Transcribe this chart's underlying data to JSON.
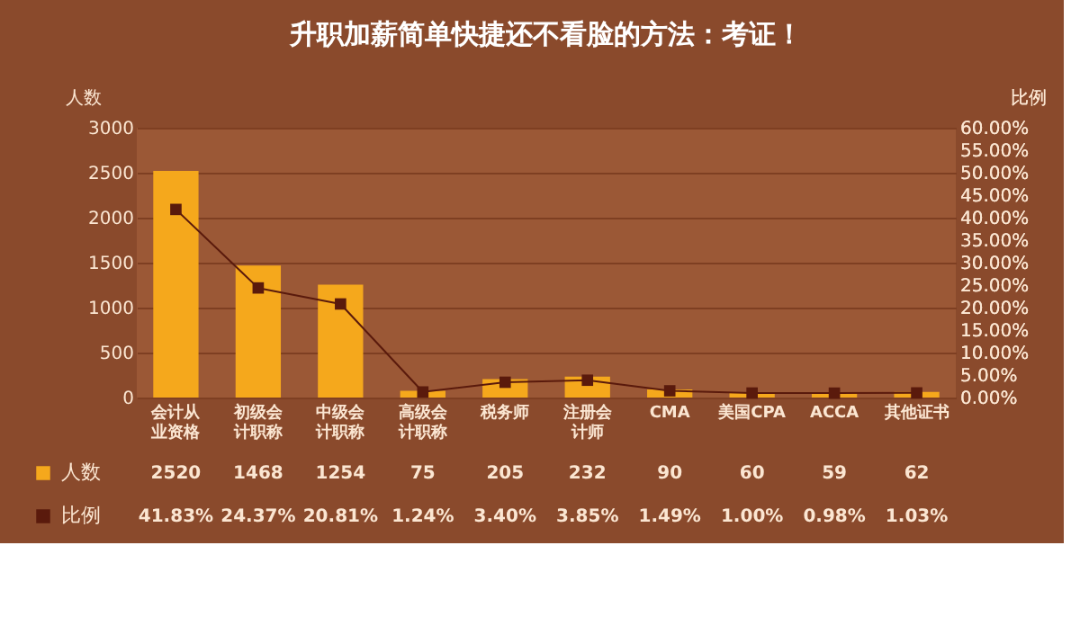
{
  "chart_data": {
    "type": "bar",
    "title": "升职加薪简单快捷还不看脸的方法：考证！",
    "ylabel": "人数",
    "y2label": "比例",
    "categories": [
      "会计从业资格",
      "初级会计职称",
      "中级会计职称",
      "高级会计职称",
      "税务师",
      "注册会计师",
      "CMA",
      "美国CPA",
      "ACCA",
      "其他证书"
    ],
    "series": [
      {
        "name": "人数",
        "color": "#f5a81c",
        "values": [
          2520,
          1468,
          1254,
          75,
          205,
          232,
          90,
          60,
          59,
          62
        ],
        "value_labels": [
          "2520",
          "1468",
          "1254",
          "75",
          "205",
          "232",
          "90",
          "60",
          "59",
          "62"
        ]
      },
      {
        "name": "比例",
        "type": "line",
        "axis": "y2",
        "color": "#5a1a0c",
        "line_style": "solid",
        "marker": "square",
        "values": [
          41.83,
          24.37,
          20.81,
          1.24,
          3.4,
          3.85,
          1.49,
          1.0,
          0.98,
          1.03
        ],
        "value_labels": [
          "41.83%",
          "24.37%",
          "20.81%",
          "1.24%",
          "3.40%",
          "3.85%",
          "1.49%",
          "1.00%",
          "0.98%",
          "1.03%"
        ]
      }
    ],
    "ylim": [
      0,
      3000
    ],
    "yticks": [
      0,
      500,
      1000,
      1500,
      2000,
      2500,
      3000
    ],
    "y2lim": [
      0,
      60
    ],
    "y2ticks": [
      {
        "value": 0,
        "label": "0.00%"
      },
      {
        "value": 5,
        "label": "5.00%"
      },
      {
        "value": 10,
        "label": "10.00%"
      },
      {
        "value": 15,
        "label": "15.00%"
      },
      {
        "value": 20,
        "label": "20.00%"
      },
      {
        "value": 25,
        "label": "25.00%"
      },
      {
        "value": 30,
        "label": "30.00%"
      },
      {
        "value": 35,
        "label": "35.00%"
      },
      {
        "value": 40,
        "label": "40.00%"
      },
      {
        "value": 45,
        "label": "45.00%"
      },
      {
        "value": 50,
        "label": "50.00%"
      },
      {
        "value": 55,
        "label": "55.00%"
      },
      {
        "value": 60,
        "label": "60.00%"
      }
    ],
    "grid": "y",
    "legend": "bottom"
  }
}
